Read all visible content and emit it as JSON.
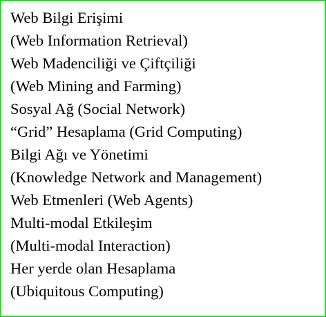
{
  "border_color": "#22dd22",
  "lines": [
    "Web Bilgi Erişimi",
    "(Web Information Retrieval)",
    "Web Madenciliği ve Çiftçiliği",
    "(Web Mining and Farming)",
    "Sosyal Ağ (Social Network)",
    "“Grid” Hesaplama (Grid Computing)",
    "Bilgi Ağı ve Yönetimi",
    "(Knowledge Network and Management)",
    "Web Etmenleri (Web Agents)",
    "Multi-modal Etkileşim",
    "(Multi-modal Interaction)",
    "Her yerde olan Hesaplama",
    "(Ubiquitous Computing)"
  ]
}
